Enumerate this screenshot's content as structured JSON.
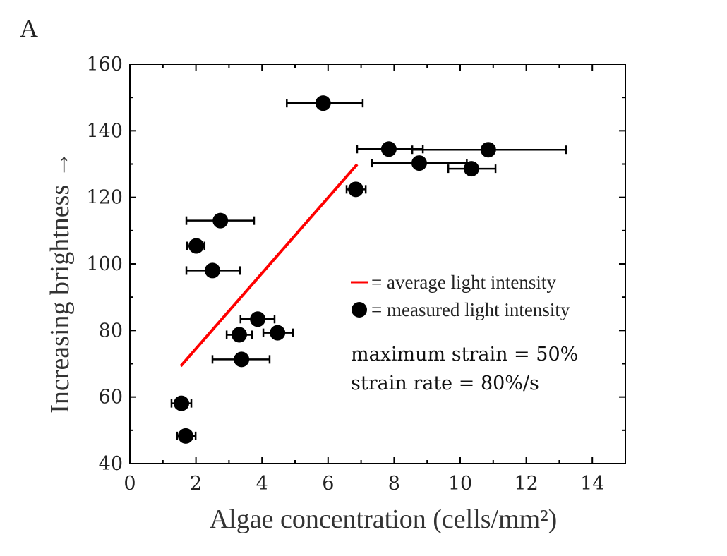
{
  "panel_label": "A",
  "chart_data": {
    "type": "scatter",
    "title": "",
    "xlabel": "Algae concentration (cells/mm²)",
    "ylabel": "Increasing brightness →",
    "xlim": [
      0,
      15
    ],
    "ylim": [
      40,
      160
    ],
    "xticks": [
      0,
      2,
      4,
      6,
      8,
      10,
      12,
      14
    ],
    "yticks": [
      40,
      60,
      80,
      100,
      120,
      140,
      160
    ],
    "grid": false,
    "legend_placement": "center-right",
    "colors": {
      "line": "#ff0000",
      "points": "#000000"
    },
    "series": [
      {
        "name": "= measured light intensity",
        "kind": "points-with-x-error",
        "points": [
          {
            "x": 5.85,
            "y": 148.3,
            "xmin": 4.75,
            "xmax": 7.05
          },
          {
            "x": 7.84,
            "y": 134.5,
            "xmin": 6.88,
            "xmax": 8.87
          },
          {
            "x": 10.85,
            "y": 134.3,
            "xmin": 8.55,
            "xmax": 13.2
          },
          {
            "x": 8.76,
            "y": 130.3,
            "xmin": 7.33,
            "xmax": 10.2
          },
          {
            "x": 10.34,
            "y": 128.6,
            "xmin": 9.64,
            "xmax": 11.07
          },
          {
            "x": 6.84,
            "y": 122.4,
            "xmin": 6.56,
            "xmax": 7.14
          },
          {
            "x": 2.74,
            "y": 113.0,
            "xmin": 1.71,
            "xmax": 3.76
          },
          {
            "x": 2.01,
            "y": 105.4,
            "xmin": 1.73,
            "xmax": 2.26
          },
          {
            "x": 2.5,
            "y": 98.0,
            "xmin": 1.71,
            "xmax": 3.33
          },
          {
            "x": 3.87,
            "y": 83.4,
            "xmin": 3.35,
            "xmax": 4.38
          },
          {
            "x": 3.31,
            "y": 78.7,
            "xmin": 2.93,
            "xmax": 3.7
          },
          {
            "x": 4.47,
            "y": 79.3,
            "xmin": 4.04,
            "xmax": 4.94
          },
          {
            "x": 3.38,
            "y": 71.3,
            "xmin": 2.5,
            "xmax": 4.23
          },
          {
            "x": 1.56,
            "y": 58.1,
            "xmin": 1.26,
            "xmax": 1.86
          },
          {
            "x": 1.69,
            "y": 48.3,
            "xmin": 1.43,
            "xmax": 1.99
          }
        ]
      },
      {
        "name": "= average light intensity",
        "kind": "line",
        "points": [
          {
            "x": 1.54,
            "y": 69.3
          },
          {
            "x": 6.88,
            "y": 129.9
          }
        ]
      }
    ],
    "annotations": [
      "maximum strain = 50%",
      "strain rate = 80%/s"
    ]
  }
}
